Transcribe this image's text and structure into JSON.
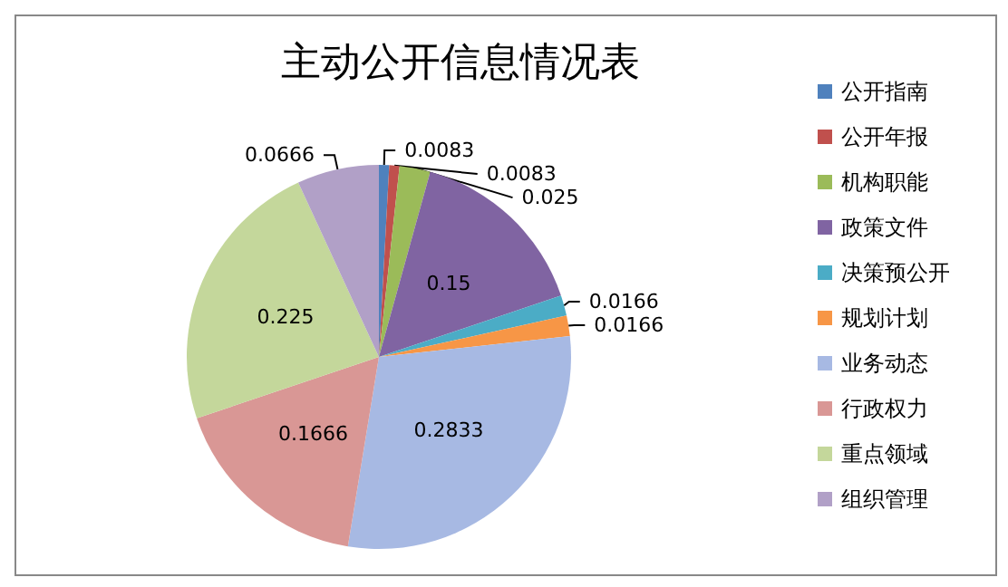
{
  "chart_data": {
    "type": "pie",
    "title": "主动公开信息情况表",
    "categories": [
      "公开指南",
      "公开年报",
      "机构职能",
      "政策文件",
      "决策预公开",
      "规划计划",
      "业务动态",
      "行政权力",
      "重点领域",
      "组织管理"
    ],
    "values": [
      0.0083,
      0.0083,
      0.025,
      0.15,
      0.0166,
      0.0166,
      0.2833,
      0.1666,
      0.225,
      0.0666
    ],
    "colors": [
      "#4f81bd",
      "#c0504d",
      "#9bbb59",
      "#8064a2",
      "#4bacc6",
      "#f79646",
      "#a7b9e3",
      "#d99795",
      "#c4d79b",
      "#b1a0c7"
    ],
    "data_labels": true,
    "legend": "right"
  }
}
